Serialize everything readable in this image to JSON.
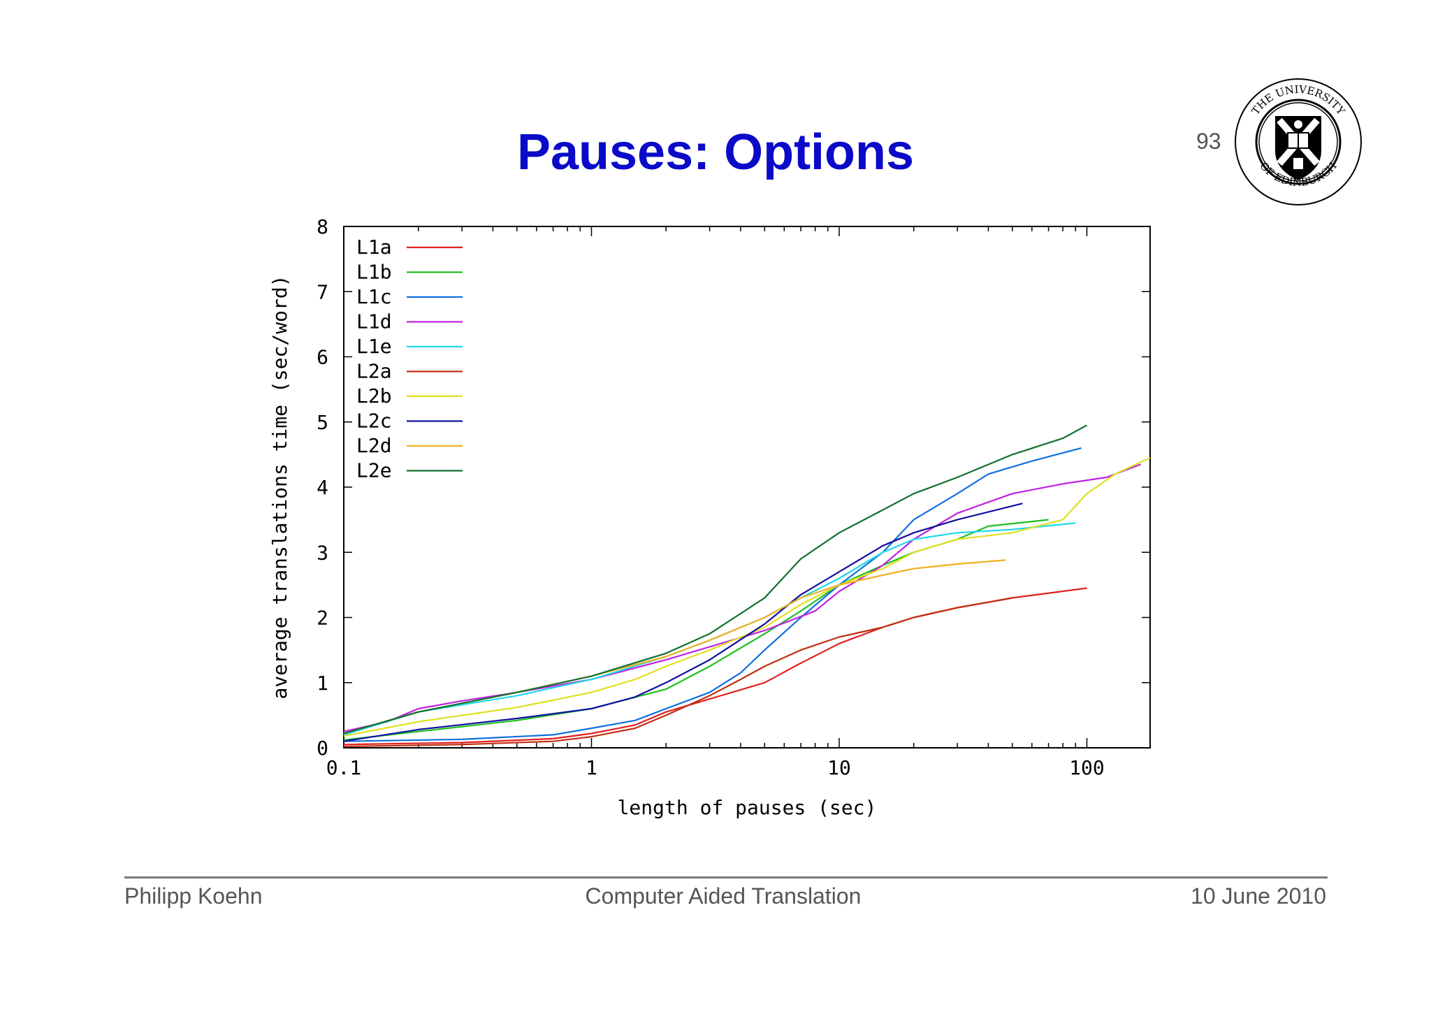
{
  "slide": {
    "title": "Pauses: Options",
    "page_number": "93"
  },
  "logo": {
    "name": "university-of-edinburgh-crest",
    "text": "THE UNIVERSITY OF EDINBURGH"
  },
  "footer": {
    "author": "Philipp Koehn",
    "course": "Computer Aided Translation",
    "date": "10 June 2010"
  },
  "chart_data": {
    "type": "line",
    "title": "",
    "xlabel": "length of pauses (sec)",
    "ylabel": "average translations time (sec/word)",
    "xscale": "log",
    "xlim": [
      0.1,
      180
    ],
    "ylim": [
      0,
      8
    ],
    "xticks": [
      {
        "value": 0.1,
        "label": "0.1"
      },
      {
        "value": 1,
        "label": "1"
      },
      {
        "value": 10,
        "label": "10"
      },
      {
        "value": 100,
        "label": "100"
      }
    ],
    "yticks": [
      {
        "value": 0,
        "label": "0"
      },
      {
        "value": 1,
        "label": "1"
      },
      {
        "value": 2,
        "label": "2"
      },
      {
        "value": 3,
        "label": "3"
      },
      {
        "value": 4,
        "label": "4"
      },
      {
        "value": 5,
        "label": "5"
      },
      {
        "value": 6,
        "label": "6"
      },
      {
        "value": 7,
        "label": "7"
      },
      {
        "value": 8,
        "label": "8"
      }
    ],
    "grid": false,
    "legend_position": "top-left",
    "series": [
      {
        "name": "L1a",
        "color": "#e02020",
        "points": [
          [
            0.1,
            0.05
          ],
          [
            0.3,
            0.08
          ],
          [
            0.7,
            0.14
          ],
          [
            1,
            0.22
          ],
          [
            1.5,
            0.35
          ],
          [
            2,
            0.55
          ],
          [
            3,
            0.75
          ],
          [
            5,
            1.0
          ],
          [
            7,
            1.3
          ],
          [
            10,
            1.6
          ],
          [
            15,
            1.85
          ],
          [
            20,
            2.0
          ],
          [
            30,
            2.15
          ],
          [
            50,
            2.3
          ],
          [
            100,
            2.45
          ]
        ]
      },
      {
        "name": "L1b",
        "color": "#20c020",
        "points": [
          [
            0.1,
            0.12
          ],
          [
            0.2,
            0.25
          ],
          [
            0.5,
            0.42
          ],
          [
            1,
            0.6
          ],
          [
            2,
            0.9
          ],
          [
            3,
            1.25
          ],
          [
            5,
            1.75
          ],
          [
            7,
            2.1
          ],
          [
            10,
            2.5
          ],
          [
            15,
            2.8
          ],
          [
            20,
            3.0
          ],
          [
            30,
            3.2
          ],
          [
            40,
            3.4
          ],
          [
            70,
            3.5
          ]
        ]
      },
      {
        "name": "L1c",
        "color": "#1070e0",
        "points": [
          [
            0.1,
            0.1
          ],
          [
            0.3,
            0.13
          ],
          [
            0.7,
            0.2
          ],
          [
            1,
            0.3
          ],
          [
            1.5,
            0.42
          ],
          [
            2,
            0.6
          ],
          [
            3,
            0.85
          ],
          [
            4,
            1.15
          ],
          [
            5,
            1.5
          ],
          [
            7,
            2.0
          ],
          [
            10,
            2.5
          ],
          [
            15,
            3.0
          ],
          [
            20,
            3.5
          ],
          [
            30,
            3.9
          ],
          [
            40,
            4.2
          ],
          [
            60,
            4.4
          ],
          [
            95,
            4.6
          ]
        ]
      },
      {
        "name": "L1d",
        "color": "#c020e0",
        "points": [
          [
            0.1,
            0.25
          ],
          [
            0.15,
            0.4
          ],
          [
            0.2,
            0.6
          ],
          [
            0.3,
            0.72
          ],
          [
            0.5,
            0.85
          ],
          [
            1,
            1.05
          ],
          [
            2,
            1.35
          ],
          [
            3,
            1.55
          ],
          [
            5,
            1.8
          ],
          [
            8,
            2.1
          ],
          [
            10,
            2.4
          ],
          [
            15,
            2.8
          ],
          [
            20,
            3.2
          ],
          [
            30,
            3.6
          ],
          [
            50,
            3.9
          ],
          [
            80,
            4.05
          ],
          [
            120,
            4.15
          ],
          [
            165,
            4.35
          ]
        ]
      },
      {
        "name": "L1e",
        "color": "#20d8e8",
        "points": [
          [
            0.1,
            0.2
          ],
          [
            0.2,
            0.55
          ],
          [
            0.5,
            0.8
          ],
          [
            1,
            1.05
          ],
          [
            2,
            1.4
          ],
          [
            3,
            1.65
          ],
          [
            5,
            2.0
          ],
          [
            7,
            2.3
          ],
          [
            10,
            2.6
          ],
          [
            15,
            3.0
          ],
          [
            20,
            3.2
          ],
          [
            30,
            3.3
          ],
          [
            50,
            3.35
          ],
          [
            90,
            3.45
          ]
        ]
      },
      {
        "name": "L2a",
        "color": "#c03010",
        "points": [
          [
            0.1,
            0.02
          ],
          [
            0.3,
            0.05
          ],
          [
            0.7,
            0.1
          ],
          [
            1,
            0.17
          ],
          [
            1.5,
            0.3
          ],
          [
            2,
            0.5
          ],
          [
            3,
            0.8
          ],
          [
            4,
            1.05
          ],
          [
            5,
            1.25
          ],
          [
            7,
            1.5
          ],
          [
            10,
            1.7
          ],
          [
            15,
            1.85
          ],
          [
            20,
            2.0
          ],
          [
            30,
            2.15
          ],
          [
            50,
            2.3
          ]
        ]
      },
      {
        "name": "L2b",
        "color": "#e0e020",
        "points": [
          [
            0.1,
            0.18
          ],
          [
            0.2,
            0.4
          ],
          [
            0.5,
            0.62
          ],
          [
            1,
            0.85
          ],
          [
            1.5,
            1.05
          ],
          [
            2,
            1.25
          ],
          [
            3,
            1.5
          ],
          [
            5,
            1.85
          ],
          [
            7,
            2.2
          ],
          [
            10,
            2.5
          ],
          [
            15,
            2.75
          ],
          [
            20,
            3.0
          ],
          [
            30,
            3.2
          ],
          [
            50,
            3.3
          ],
          [
            80,
            3.5
          ],
          [
            100,
            3.9
          ],
          [
            130,
            4.2
          ],
          [
            180,
            4.45
          ]
        ]
      },
      {
        "name": "L2c",
        "color": "#1010a0",
        "points": [
          [
            0.1,
            0.1
          ],
          [
            0.2,
            0.28
          ],
          [
            0.5,
            0.45
          ],
          [
            1,
            0.6
          ],
          [
            1.5,
            0.78
          ],
          [
            2,
            1.0
          ],
          [
            3,
            1.35
          ],
          [
            5,
            1.9
          ],
          [
            7,
            2.35
          ],
          [
            10,
            2.7
          ],
          [
            15,
            3.1
          ],
          [
            20,
            3.3
          ],
          [
            30,
            3.5
          ],
          [
            55,
            3.75
          ]
        ]
      },
      {
        "name": "L2d",
        "color": "#f0b020",
        "points": [
          [
            0.1,
            0.22
          ],
          [
            0.2,
            0.55
          ],
          [
            0.5,
            0.85
          ],
          [
            1,
            1.1
          ],
          [
            2,
            1.4
          ],
          [
            3,
            1.65
          ],
          [
            5,
            2.0
          ],
          [
            7,
            2.3
          ],
          [
            10,
            2.5
          ],
          [
            15,
            2.65
          ],
          [
            20,
            2.75
          ],
          [
            30,
            2.82
          ],
          [
            47,
            2.88
          ]
        ]
      },
      {
        "name": "L2e",
        "color": "#107030",
        "points": [
          [
            0.1,
            0.22
          ],
          [
            0.2,
            0.55
          ],
          [
            0.5,
            0.85
          ],
          [
            1,
            1.1
          ],
          [
            2,
            1.45
          ],
          [
            3,
            1.75
          ],
          [
            5,
            2.3
          ],
          [
            7,
            2.9
          ],
          [
            10,
            3.3
          ],
          [
            15,
            3.65
          ],
          [
            20,
            3.9
          ],
          [
            30,
            4.15
          ],
          [
            50,
            4.5
          ],
          [
            80,
            4.75
          ],
          [
            100,
            4.95
          ]
        ]
      }
    ]
  }
}
